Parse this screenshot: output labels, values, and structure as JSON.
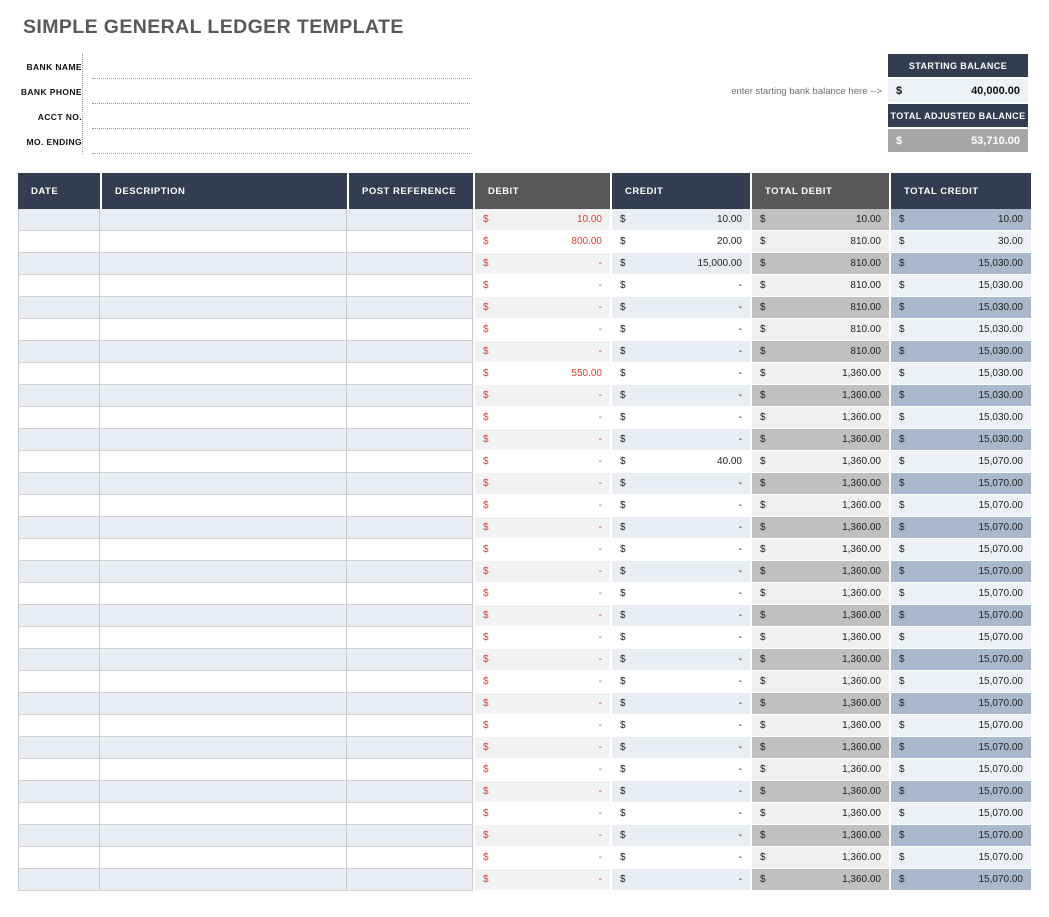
{
  "title": "SIMPLE GENERAL LEDGER TEMPLATE",
  "form": {
    "fields": [
      {
        "label": "BANK NAME",
        "value": ""
      },
      {
        "label": "BANK PHONE",
        "value": ""
      },
      {
        "label": "ACCT NO.",
        "value": ""
      },
      {
        "label": "MO. ENDING",
        "value": ""
      }
    ]
  },
  "balance_panel": {
    "hint": "enter starting bank balance here -->",
    "starting_balance_label": "STARTING BALANCE",
    "starting_balance_currency": "$",
    "starting_balance_value": "40,000.00",
    "adjusted_balance_label": "TOTAL ADJUSTED BALANCE",
    "adjusted_balance_currency": "$",
    "adjusted_balance_value": "53,710.00"
  },
  "table": {
    "currency_symbol": "$",
    "columns": [
      {
        "label": "DATE",
        "style": "navy"
      },
      {
        "label": "DESCRIPTION",
        "style": "navy"
      },
      {
        "label": "POST REFERENCE",
        "style": "navy"
      },
      {
        "label": "DEBIT",
        "style": "gray"
      },
      {
        "label": "CREDIT",
        "style": "navy"
      },
      {
        "label": "TOTAL DEBIT",
        "style": "gray"
      },
      {
        "label": "TOTAL CREDIT",
        "style": "navy"
      }
    ],
    "rows": [
      {
        "date": "",
        "description": "",
        "post_reference": "",
        "debit": "10.00",
        "credit": "10.00",
        "total_debit": "10.00",
        "total_credit": "10.00"
      },
      {
        "date": "",
        "description": "",
        "post_reference": "",
        "debit": "800.00",
        "credit": "20.00",
        "total_debit": "810.00",
        "total_credit": "30.00"
      },
      {
        "date": "",
        "description": "",
        "post_reference": "",
        "debit": "-",
        "credit": "15,000.00",
        "total_debit": "810.00",
        "total_credit": "15,030.00"
      },
      {
        "date": "",
        "description": "",
        "post_reference": "",
        "debit": "-",
        "credit": "-",
        "total_debit": "810.00",
        "total_credit": "15,030.00"
      },
      {
        "date": "",
        "description": "",
        "post_reference": "",
        "debit": "-",
        "credit": "-",
        "total_debit": "810.00",
        "total_credit": "15,030.00"
      },
      {
        "date": "",
        "description": "",
        "post_reference": "",
        "debit": "-",
        "credit": "-",
        "total_debit": "810.00",
        "total_credit": "15,030.00"
      },
      {
        "date": "",
        "description": "",
        "post_reference": "",
        "debit": "-",
        "credit": "-",
        "total_debit": "810.00",
        "total_credit": "15,030.00"
      },
      {
        "date": "",
        "description": "",
        "post_reference": "",
        "debit": "550.00",
        "credit": "-",
        "total_debit": "1,360.00",
        "total_credit": "15,030.00"
      },
      {
        "date": "",
        "description": "",
        "post_reference": "",
        "debit": "-",
        "credit": "-",
        "total_debit": "1,360.00",
        "total_credit": "15,030.00"
      },
      {
        "date": "",
        "description": "",
        "post_reference": "",
        "debit": "-",
        "credit": "-",
        "total_debit": "1,360.00",
        "total_credit": "15,030.00"
      },
      {
        "date": "",
        "description": "",
        "post_reference": "",
        "debit": "-",
        "credit": "-",
        "total_debit": "1,360.00",
        "total_credit": "15,030.00"
      },
      {
        "date": "",
        "description": "",
        "post_reference": "",
        "debit": "-",
        "credit": "40.00",
        "total_debit": "1,360.00",
        "total_credit": "15,070.00"
      },
      {
        "date": "",
        "description": "",
        "post_reference": "",
        "debit": "-",
        "credit": "-",
        "total_debit": "1,360.00",
        "total_credit": "15,070.00"
      },
      {
        "date": "",
        "description": "",
        "post_reference": "",
        "debit": "-",
        "credit": "-",
        "total_debit": "1,360.00",
        "total_credit": "15,070.00"
      },
      {
        "date": "",
        "description": "",
        "post_reference": "",
        "debit": "-",
        "credit": "-",
        "total_debit": "1,360.00",
        "total_credit": "15,070.00"
      },
      {
        "date": "",
        "description": "",
        "post_reference": "",
        "debit": "-",
        "credit": "-",
        "total_debit": "1,360.00",
        "total_credit": "15,070.00"
      },
      {
        "date": "",
        "description": "",
        "post_reference": "",
        "debit": "-",
        "credit": "-",
        "total_debit": "1,360.00",
        "total_credit": "15,070.00"
      },
      {
        "date": "",
        "description": "",
        "post_reference": "",
        "debit": "-",
        "credit": "-",
        "total_debit": "1,360.00",
        "total_credit": "15,070.00"
      },
      {
        "date": "",
        "description": "",
        "post_reference": "",
        "debit": "-",
        "credit": "-",
        "total_debit": "1,360.00",
        "total_credit": "15,070.00"
      },
      {
        "date": "",
        "description": "",
        "post_reference": "",
        "debit": "-",
        "credit": "-",
        "total_debit": "1,360.00",
        "total_credit": "15,070.00"
      },
      {
        "date": "",
        "description": "",
        "post_reference": "",
        "debit": "-",
        "credit": "-",
        "total_debit": "1,360.00",
        "total_credit": "15,070.00"
      },
      {
        "date": "",
        "description": "",
        "post_reference": "",
        "debit": "-",
        "credit": "-",
        "total_debit": "1,360.00",
        "total_credit": "15,070.00"
      },
      {
        "date": "",
        "description": "",
        "post_reference": "",
        "debit": "-",
        "credit": "-",
        "total_debit": "1,360.00",
        "total_credit": "15,070.00"
      },
      {
        "date": "",
        "description": "",
        "post_reference": "",
        "debit": "-",
        "credit": "-",
        "total_debit": "1,360.00",
        "total_credit": "15,070.00"
      },
      {
        "date": "",
        "description": "",
        "post_reference": "",
        "debit": "-",
        "credit": "-",
        "total_debit": "1,360.00",
        "total_credit": "15,070.00"
      },
      {
        "date": "",
        "description": "",
        "post_reference": "",
        "debit": "-",
        "credit": "-",
        "total_debit": "1,360.00",
        "total_credit": "15,070.00"
      },
      {
        "date": "",
        "description": "",
        "post_reference": "",
        "debit": "-",
        "credit": "-",
        "total_debit": "1,360.00",
        "total_credit": "15,070.00"
      },
      {
        "date": "",
        "description": "",
        "post_reference": "",
        "debit": "-",
        "credit": "-",
        "total_debit": "1,360.00",
        "total_credit": "15,070.00"
      },
      {
        "date": "",
        "description": "",
        "post_reference": "",
        "debit": "-",
        "credit": "-",
        "total_debit": "1,360.00",
        "total_credit": "15,070.00"
      },
      {
        "date": "",
        "description": "",
        "post_reference": "",
        "debit": "-",
        "credit": "-",
        "total_debit": "1,360.00",
        "total_credit": "15,070.00"
      },
      {
        "date": "",
        "description": "",
        "post_reference": "",
        "debit": "-",
        "credit": "-",
        "total_debit": "1,360.00",
        "total_credit": "15,070.00"
      }
    ]
  },
  "colors": {
    "header_navy": "#323d4f",
    "header_gray": "#59575a",
    "debit_red": "#e23b2e",
    "row_shade_blue": "#e9ecf2",
    "debit_shade": "#f2f2f2",
    "total_debit_shade": "#c1c0bf",
    "total_credit_shade": "#a9b9cb",
    "starting_balance_fill": "#eef1f5",
    "adjusted_balance_fill": "#a6a6a6",
    "title_gray": "#595959"
  }
}
